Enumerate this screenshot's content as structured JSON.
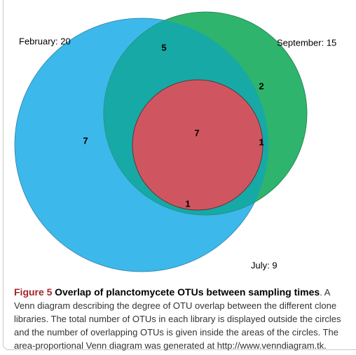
{
  "figure": {
    "sets": [
      {
        "label": "February: 20"
      },
      {
        "label": "September: 15"
      },
      {
        "label": "July: 9"
      }
    ],
    "regions": [
      {
        "label": 5
      },
      {
        "label": 2
      },
      {
        "label": 7
      },
      {
        "label": 7
      },
      {
        "label": 1
      },
      {
        "label": 1
      }
    ]
  },
  "caption": {
    "label": "Figure 5",
    "title": "Overlap of planctomycete OTUs between sampling times",
    "text": ". A Venn diagram describing the degree of OTU overlap between the different clone libraries. The total number of OTUs in each library is displayed outside the circles and the number of overlapping OTUs is given inside the areas of the circles. The area-proportional Venn diagram was generated at http://www.venndiagram.tk."
  }
}
